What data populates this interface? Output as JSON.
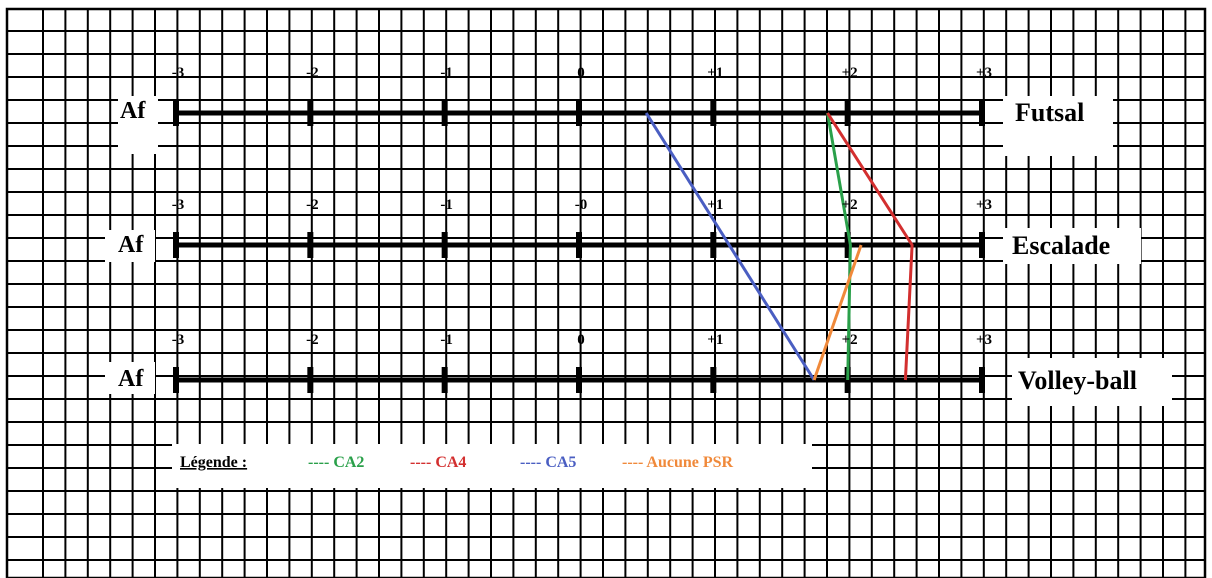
{
  "chart_data": {
    "type": "line",
    "tick_labels": {
      "top": [
        "-3",
        "-2",
        "-1",
        "0",
        "+1",
        "+2",
        "+3"
      ],
      "middle": [
        "-3",
        "-2",
        "-1",
        "-0",
        "+1",
        "+2",
        "+3"
      ],
      "bottom": [
        "-3",
        "-2",
        "-1",
        "0",
        "+1",
        "+2",
        "+3"
      ]
    },
    "x_range": [
      -3,
      3
    ],
    "grid": true,
    "scales": [
      {
        "left_label": "Af",
        "right_label": "Futsal"
      },
      {
        "left_label": "Af",
        "right_label": "Escalade"
      },
      {
        "left_label": "Af",
        "right_label": "Volley-ball"
      }
    ],
    "series": [
      {
        "name": "---- CA2",
        "color": "#2aa04a",
        "points": [
          {
            "scale": 0,
            "x": 1.85
          },
          {
            "scale": 1,
            "x": 2.02
          },
          {
            "scale": 2,
            "x": 2.0
          }
        ]
      },
      {
        "name": "---- CA4",
        "color": "#d32f2f",
        "points": [
          {
            "scale": 0,
            "x": 1.85
          },
          {
            "scale": 1,
            "x": 2.48
          },
          {
            "scale": 2,
            "x": 2.43
          }
        ]
      },
      {
        "name": "---- CA5",
        "color": "#4a5ec2",
        "points": [
          {
            "scale": 0,
            "x": 0.5
          },
          {
            "scale": 2,
            "x": 1.75
          }
        ]
      },
      {
        "name": "---- Aucune PSR",
        "color": "#f0893a",
        "points": [
          {
            "scale": 2,
            "x": 1.75
          },
          {
            "scale": 1,
            "x": 2.1
          }
        ]
      }
    ],
    "legend": {
      "title": "Légende :",
      "placement": "bottom-left"
    }
  }
}
